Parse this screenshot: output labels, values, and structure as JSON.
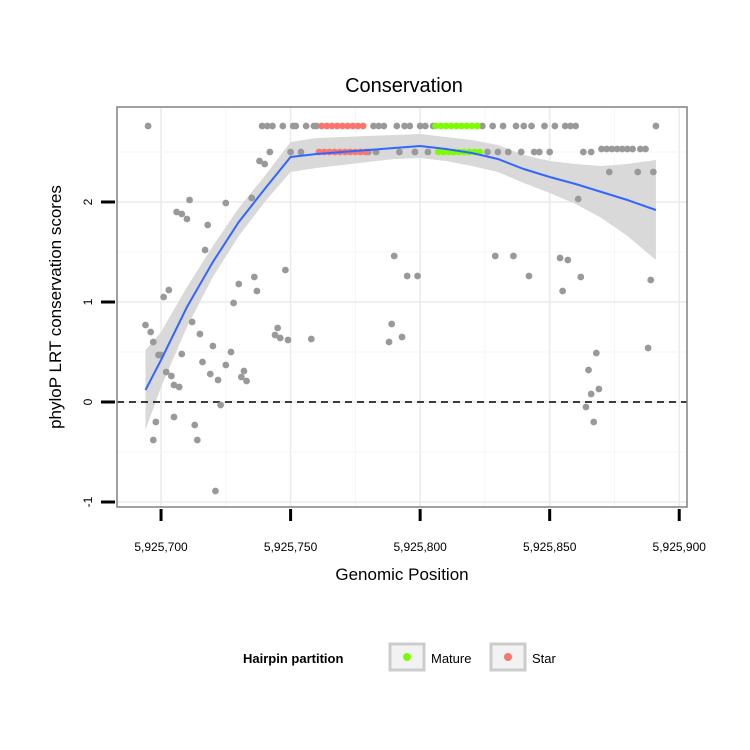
{
  "chart_data": {
    "type": "scatter",
    "title": "Conservation",
    "xlabel": "Genomic Position",
    "ylabel": "phyloP LRT conservation scores",
    "xlim": [
      5925683,
      5925903
    ],
    "ylim": [
      -1.05,
      2.95
    ],
    "x_ticks": [
      5925700,
      5925750,
      5925800,
      5925850,
      5925900
    ],
    "x_tick_labels": [
      "5,925,700",
      "5,925,750",
      "5,925,800",
      "5,925,850",
      "5,925,900"
    ],
    "y_ticks": [
      -1,
      0,
      1,
      2
    ],
    "y_tick_labels": [
      "-1",
      "0",
      "1",
      "2"
    ],
    "grid": true,
    "reference_line": {
      "y": 0,
      "style": "dashed"
    },
    "legend": {
      "title": "Hairpin partition",
      "placement": "bottom",
      "entries": [
        {
          "name": "Mature",
          "color": "#7CFC00"
        },
        {
          "name": "Star",
          "color": "#F8766D"
        }
      ]
    },
    "colors": {
      "other": "#999999",
      "smooth": "#3366FF",
      "ribbon": "#D9D9D9"
    },
    "series": [
      {
        "group": "other",
        "points": [
          [
            5925694,
            0.77
          ],
          [
            5925695,
            2.76
          ],
          [
            5925696,
            0.7
          ],
          [
            5925697,
            -0.38
          ],
          [
            5925697,
            0.6
          ],
          [
            5925698,
            -0.2
          ],
          [
            5925699,
            0.47
          ],
          [
            5925700,
            0.47
          ],
          [
            5925701,
            1.05
          ],
          [
            5925702,
            0.3
          ],
          [
            5925703,
            1.12
          ],
          [
            5925704,
            0.26
          ],
          [
            5925705,
            -0.15
          ],
          [
            5925705,
            0.17
          ],
          [
            5925706,
            1.9
          ],
          [
            5925707,
            0.15
          ],
          [
            5925708,
            1.88
          ],
          [
            5925708,
            0.48
          ],
          [
            5925710,
            1.83
          ],
          [
            5925711,
            2.02
          ],
          [
            5925712,
            0.8
          ],
          [
            5925713,
            -0.23
          ],
          [
            5925714,
            -0.38
          ],
          [
            5925715,
            0.68
          ],
          [
            5925716,
            0.4
          ],
          [
            5925717,
            1.52
          ],
          [
            5925718,
            1.77
          ],
          [
            5925719,
            0.28
          ],
          [
            5925720,
            0.56
          ],
          [
            5925721,
            -0.89
          ],
          [
            5925722,
            0.22
          ],
          [
            5925723,
            -0.03
          ],
          [
            5925725,
            1.99
          ],
          [
            5925725,
            0.37
          ],
          [
            5925727,
            0.5
          ],
          [
            5925728,
            0.99
          ],
          [
            5925730,
            1.18
          ],
          [
            5925731,
            0.25
          ],
          [
            5925732,
            0.31
          ],
          [
            5925733,
            0.21
          ],
          [
            5925735,
            2.04
          ],
          [
            5925736,
            1.25
          ],
          [
            5925737,
            1.11
          ],
          [
            5925738,
            2.41
          ],
          [
            5925739,
            2.76
          ],
          [
            5925740,
            2.38
          ],
          [
            5925741,
            2.76
          ],
          [
            5925742,
            2.5
          ],
          [
            5925743,
            2.76
          ],
          [
            5925744,
            0.67
          ],
          [
            5925745,
            0.74
          ],
          [
            5925746,
            0.64
          ],
          [
            5925747,
            2.76
          ],
          [
            5925748,
            1.32
          ],
          [
            5925749,
            0.62
          ],
          [
            5925750,
            2.5
          ],
          [
            5925751,
            2.76
          ],
          [
            5925752,
            2.76
          ],
          [
            5925754,
            2.5
          ],
          [
            5925756,
            2.76
          ],
          [
            5925758,
            0.63
          ],
          [
            5925759,
            2.76
          ],
          [
            5925760,
            2.76
          ],
          [
            5925780,
            2.5
          ],
          [
            5925782,
            2.76
          ],
          [
            5925783,
            2.5
          ],
          [
            5925784,
            2.76
          ],
          [
            5925786,
            2.76
          ],
          [
            5925788,
            0.6
          ],
          [
            5925789,
            0.78
          ],
          [
            5925790,
            1.46
          ],
          [
            5925791,
            2.76
          ],
          [
            5925792,
            2.5
          ],
          [
            5925793,
            0.65
          ],
          [
            5925794,
            2.76
          ],
          [
            5925795,
            1.26
          ],
          [
            5925796,
            2.76
          ],
          [
            5925798,
            2.5
          ],
          [
            5925799,
            1.26
          ],
          [
            5925800,
            2.76
          ],
          [
            5925802,
            2.76
          ],
          [
            5925803,
            2.5
          ],
          [
            5925805,
            2.76
          ],
          [
            5925824,
            2.76
          ],
          [
            5925826,
            2.5
          ],
          [
            5925828,
            2.76
          ],
          [
            5925829,
            1.46
          ],
          [
            5925830,
            2.5
          ],
          [
            5925832,
            2.76
          ],
          [
            5925834,
            2.5
          ],
          [
            5925836,
            1.46
          ],
          [
            5925837,
            2.76
          ],
          [
            5925839,
            2.5
          ],
          [
            5925840,
            2.76
          ],
          [
            5925842,
            1.26
          ],
          [
            5925843,
            2.76
          ],
          [
            5925844,
            2.5
          ],
          [
            5925846,
            2.5
          ],
          [
            5925848,
            2.76
          ],
          [
            5925850,
            2.5
          ],
          [
            5925852,
            2.76
          ],
          [
            5925854,
            1.44
          ],
          [
            5925855,
            1.11
          ],
          [
            5925856,
            2.76
          ],
          [
            5925857,
            1.42
          ],
          [
            5925858,
            2.76
          ],
          [
            5925860,
            2.76
          ],
          [
            5925861,
            2.03
          ],
          [
            5925862,
            1.25
          ],
          [
            5925863,
            2.5
          ],
          [
            5925864,
            -0.05
          ],
          [
            5925865,
            0.32
          ],
          [
            5925866,
            0.08
          ],
          [
            5925866,
            2.5
          ],
          [
            5925867,
            -0.2
          ],
          [
            5925868,
            0.49
          ],
          [
            5925869,
            0.13
          ],
          [
            5925870,
            2.53
          ],
          [
            5925872,
            2.53
          ],
          [
            5925873,
            2.3
          ],
          [
            5925874,
            2.53
          ],
          [
            5925876,
            2.53
          ],
          [
            5925878,
            2.53
          ],
          [
            5925880,
            2.53
          ],
          [
            5925882,
            2.53
          ],
          [
            5925884,
            2.3
          ],
          [
            5925885,
            2.53
          ],
          [
            5925887,
            2.53
          ],
          [
            5925888,
            0.54
          ],
          [
            5925889,
            1.22
          ],
          [
            5925890,
            2.3
          ],
          [
            5925891,
            2.76
          ]
        ]
      },
      {
        "group": "Star",
        "points": [
          [
            5925761,
            2.5
          ],
          [
            5925762,
            2.76
          ],
          [
            5925763,
            2.5
          ],
          [
            5925764,
            2.76
          ],
          [
            5925765,
            2.5
          ],
          [
            5925766,
            2.76
          ],
          [
            5925767,
            2.5
          ],
          [
            5925768,
            2.76
          ],
          [
            5925769,
            2.5
          ],
          [
            5925770,
            2.76
          ],
          [
            5925771,
            2.5
          ],
          [
            5925772,
            2.76
          ],
          [
            5925773,
            2.5
          ],
          [
            5925774,
            2.76
          ],
          [
            5925775,
            2.5
          ],
          [
            5925776,
            2.76
          ],
          [
            5925777,
            2.5
          ],
          [
            5925778,
            2.76
          ],
          [
            5925779,
            2.5
          ]
        ]
      },
      {
        "group": "Mature",
        "points": [
          [
            5925806,
            2.76
          ],
          [
            5925807,
            2.5
          ],
          [
            5925808,
            2.76
          ],
          [
            5925809,
            2.5
          ],
          [
            5925810,
            2.76
          ],
          [
            5925811,
            2.5
          ],
          [
            5925812,
            2.76
          ],
          [
            5925813,
            2.5
          ],
          [
            5925814,
            2.76
          ],
          [
            5925815,
            2.5
          ],
          [
            5925816,
            2.76
          ],
          [
            5925817,
            2.5
          ],
          [
            5925818,
            2.76
          ],
          [
            5925819,
            2.5
          ],
          [
            5925820,
            2.76
          ],
          [
            5925821,
            2.5
          ],
          [
            5925822,
            2.76
          ],
          [
            5925823,
            2.5
          ]
        ]
      }
    ],
    "smooth": {
      "points": [
        [
          5925694,
          0.12
        ],
        [
          5925700,
          0.42
        ],
        [
          5925710,
          0.95
        ],
        [
          5925720,
          1.4
        ],
        [
          5925730,
          1.8
        ],
        [
          5925740,
          2.13
        ],
        [
          5925750,
          2.45
        ],
        [
          5925760,
          2.48
        ],
        [
          5925770,
          2.5
        ],
        [
          5925780,
          2.52
        ],
        [
          5925790,
          2.54
        ],
        [
          5925800,
          2.56
        ],
        [
          5925810,
          2.53
        ],
        [
          5925820,
          2.49
        ],
        [
          5925830,
          2.43
        ],
        [
          5925840,
          2.33
        ],
        [
          5925850,
          2.25
        ],
        [
          5925860,
          2.18
        ],
        [
          5925870,
          2.1
        ],
        [
          5925880,
          2.02
        ],
        [
          5925891,
          1.92
        ]
      ],
      "ribbon": [
        [
          5925694,
          -0.28,
          0.52
        ],
        [
          5925700,
          0.15,
          0.7
        ],
        [
          5925710,
          0.75,
          1.15
        ],
        [
          5925720,
          1.25,
          1.56
        ],
        [
          5925730,
          1.66,
          1.94
        ],
        [
          5925740,
          2.0,
          2.26
        ],
        [
          5925750,
          2.3,
          2.6
        ],
        [
          5925760,
          2.34,
          2.64
        ],
        [
          5925770,
          2.37,
          2.65
        ],
        [
          5925780,
          2.4,
          2.66
        ],
        [
          5925790,
          2.43,
          2.67
        ],
        [
          5925800,
          2.44,
          2.68
        ],
        [
          5925810,
          2.41,
          2.65
        ],
        [
          5925820,
          2.36,
          2.62
        ],
        [
          5925830,
          2.3,
          2.57
        ],
        [
          5925840,
          2.19,
          2.47
        ],
        [
          5925850,
          2.09,
          2.41
        ],
        [
          5925860,
          1.98,
          2.38
        ],
        [
          5925870,
          1.84,
          2.36
        ],
        [
          5925880,
          1.66,
          2.38
        ],
        [
          5925891,
          1.42,
          2.42
        ]
      ]
    }
  }
}
